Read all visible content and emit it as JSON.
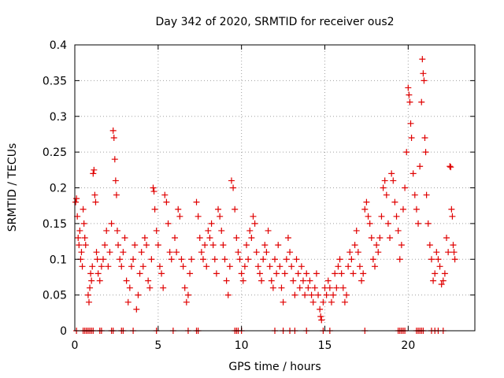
{
  "chart_data": {
    "type": "scatter",
    "title": "Day 342 of 2020, SRMTID for receiver ous2",
    "xlabel": "GPS time / hours",
    "ylabel": "SRMTID / TECUs",
    "xlim": [
      0,
      24
    ],
    "ylim": [
      0,
      0.4
    ],
    "grid": true,
    "marker": "+",
    "series_color": "#e00000",
    "xticks": [
      0,
      5,
      10,
      15,
      20
    ],
    "xtick_labels": [
      "0",
      "5",
      "10",
      "15",
      "20"
    ],
    "yticks": [
      0,
      0.05,
      0.1,
      0.15,
      0.2,
      0.25,
      0.3,
      0.35,
      0.4
    ],
    "ytick_labels": [
      "0",
      "0.05",
      "0.1",
      "0.15",
      "0.2",
      "0.25",
      "0.3",
      "0.35",
      "0.4"
    ],
    "series": [
      {
        "name": "SRMTID",
        "points": [
          [
            0.05,
            0.18
          ],
          [
            0.1,
            0.185
          ],
          [
            0.15,
            0.16
          ],
          [
            0.2,
            0.13
          ],
          [
            0.25,
            0.12
          ],
          [
            0.3,
            0.14
          ],
          [
            0.35,
            0.1
          ],
          [
            0.4,
            0.11
          ],
          [
            0.45,
            0.09
          ],
          [
            0.5,
            0.17
          ],
          [
            0.55,
            0.15
          ],
          [
            0.6,
            0.13
          ],
          [
            0.65,
            0.12
          ],
          [
            0.8,
            0.05
          ],
          [
            0.85,
            0.04
          ],
          [
            0.9,
            0.06
          ],
          [
            0.95,
            0.08
          ],
          [
            1.0,
            0.07
          ],
          [
            1.05,
            0.09
          ],
          [
            1.1,
            0.22
          ],
          [
            1.15,
            0.225
          ],
          [
            1.2,
            0.19
          ],
          [
            1.25,
            0.18
          ],
          [
            1.3,
            0.11
          ],
          [
            1.35,
            0.1
          ],
          [
            1.4,
            0.08
          ],
          [
            1.5,
            0.07
          ],
          [
            1.6,
            0.09
          ],
          [
            1.7,
            0.1
          ],
          [
            1.8,
            0.12
          ],
          [
            1.9,
            0.14
          ],
          [
            2.0,
            0.09
          ],
          [
            2.1,
            0.11
          ],
          [
            2.2,
            0.15
          ],
          [
            2.3,
            0.28
          ],
          [
            2.35,
            0.27
          ],
          [
            2.4,
            0.24
          ],
          [
            2.45,
            0.21
          ],
          [
            2.5,
            0.19
          ],
          [
            2.55,
            0.14
          ],
          [
            2.6,
            0.12
          ],
          [
            2.7,
            0.1
          ],
          [
            2.8,
            0.09
          ],
          [
            2.9,
            0.11
          ],
          [
            3.0,
            0.13
          ],
          [
            3.1,
            0.07
          ],
          [
            3.2,
            0.04
          ],
          [
            3.3,
            0.06
          ],
          [
            3.4,
            0.09
          ],
          [
            3.5,
            0.1
          ],
          [
            3.6,
            0.12
          ],
          [
            3.7,
            0.03
          ],
          [
            3.8,
            0.05
          ],
          [
            3.9,
            0.08
          ],
          [
            4.0,
            0.11
          ],
          [
            4.1,
            0.09
          ],
          [
            4.2,
            0.13
          ],
          [
            4.3,
            0.12
          ],
          [
            4.4,
            0.07
          ],
          [
            4.5,
            0.06
          ],
          [
            4.6,
            0.1
          ],
          [
            4.7,
            0.2
          ],
          [
            4.75,
            0.195
          ],
          [
            4.8,
            0.17
          ],
          [
            4.9,
            0.14
          ],
          [
            5.0,
            0.12
          ],
          [
            5.1,
            0.09
          ],
          [
            5.2,
            0.08
          ],
          [
            5.3,
            0.06
          ],
          [
            5.4,
            0.19
          ],
          [
            5.5,
            0.18
          ],
          [
            5.6,
            0.15
          ],
          [
            5.7,
            0.11
          ],
          [
            5.8,
            0.1
          ],
          [
            6.0,
            0.13
          ],
          [
            6.1,
            0.11
          ],
          [
            6.2,
            0.17
          ],
          [
            6.3,
            0.16
          ],
          [
            6.4,
            0.1
          ],
          [
            6.5,
            0.09
          ],
          [
            6.6,
            0.06
          ],
          [
            6.7,
            0.04
          ],
          [
            6.8,
            0.05
          ],
          [
            6.9,
            0.08
          ],
          [
            7.0,
            0.1
          ],
          [
            7.3,
            0.18
          ],
          [
            7.4,
            0.16
          ],
          [
            7.5,
            0.13
          ],
          [
            7.6,
            0.11
          ],
          [
            7.7,
            0.1
          ],
          [
            7.8,
            0.12
          ],
          [
            7.9,
            0.09
          ],
          [
            8.0,
            0.14
          ],
          [
            8.1,
            0.13
          ],
          [
            8.2,
            0.15
          ],
          [
            8.3,
            0.12
          ],
          [
            8.4,
            0.1
          ],
          [
            8.5,
            0.08
          ],
          [
            8.6,
            0.17
          ],
          [
            8.7,
            0.16
          ],
          [
            8.8,
            0.14
          ],
          [
            8.9,
            0.12
          ],
          [
            9.0,
            0.1
          ],
          [
            9.1,
            0.07
          ],
          [
            9.2,
            0.05
          ],
          [
            9.3,
            0.09
          ],
          [
            9.4,
            0.21
          ],
          [
            9.5,
            0.2
          ],
          [
            9.6,
            0.17
          ],
          [
            9.7,
            0.13
          ],
          [
            9.8,
            0.11
          ],
          [
            9.9,
            0.1
          ],
          [
            10.0,
            0.08
          ],
          [
            10.1,
            0.07
          ],
          [
            10.2,
            0.09
          ],
          [
            10.3,
            0.12
          ],
          [
            10.4,
            0.1
          ],
          [
            10.5,
            0.14
          ],
          [
            10.6,
            0.13
          ],
          [
            10.7,
            0.16
          ],
          [
            10.8,
            0.15
          ],
          [
            10.9,
            0.11
          ],
          [
            11.0,
            0.09
          ],
          [
            11.1,
            0.08
          ],
          [
            11.2,
            0.07
          ],
          [
            11.3,
            0.1
          ],
          [
            11.4,
            0.12
          ],
          [
            11.5,
            0.11
          ],
          [
            11.6,
            0.14
          ],
          [
            11.7,
            0.09
          ],
          [
            11.8,
            0.07
          ],
          [
            11.9,
            0.06
          ],
          [
            12.0,
            0.1
          ],
          [
            12.1,
            0.08
          ],
          [
            12.2,
            0.12
          ],
          [
            12.3,
            0.09
          ],
          [
            12.4,
            0.06
          ],
          [
            12.5,
            0.04
          ],
          [
            12.6,
            0.08
          ],
          [
            12.7,
            0.1
          ],
          [
            12.8,
            0.13
          ],
          [
            12.9,
            0.11
          ],
          [
            13.0,
            0.09
          ],
          [
            13.1,
            0.07
          ],
          [
            13.2,
            0.05
          ],
          [
            13.3,
            0.1
          ],
          [
            13.4,
            0.08
          ],
          [
            13.5,
            0.06
          ],
          [
            13.6,
            0.09
          ],
          [
            13.7,
            0.07
          ],
          [
            13.8,
            0.05
          ],
          [
            13.9,
            0.08
          ],
          [
            14.0,
            0.06
          ],
          [
            14.1,
            0.07
          ],
          [
            14.2,
            0.05
          ],
          [
            14.3,
            0.04
          ],
          [
            14.4,
            0.06
          ],
          [
            14.5,
            0.08
          ],
          [
            14.6,
            0.05
          ],
          [
            14.7,
            0.03
          ],
          [
            14.75,
            0.02
          ],
          [
            14.8,
            0.015
          ],
          [
            14.9,
            0.04
          ],
          [
            15.0,
            0.06
          ],
          [
            15.1,
            0.05
          ],
          [
            15.2,
            0.07
          ],
          [
            15.3,
            0.06
          ],
          [
            15.4,
            0.04
          ],
          [
            15.5,
            0.05
          ],
          [
            15.6,
            0.08
          ],
          [
            15.7,
            0.06
          ],
          [
            15.8,
            0.09
          ],
          [
            15.9,
            0.1
          ],
          [
            16.0,
            0.08
          ],
          [
            16.1,
            0.06
          ],
          [
            16.2,
            0.04
          ],
          [
            16.3,
            0.05
          ],
          [
            16.4,
            0.09
          ],
          [
            16.5,
            0.11
          ],
          [
            16.6,
            0.1
          ],
          [
            16.7,
            0.08
          ],
          [
            16.8,
            0.12
          ],
          [
            16.9,
            0.14
          ],
          [
            17.0,
            0.11
          ],
          [
            17.1,
            0.09
          ],
          [
            17.2,
            0.07
          ],
          [
            17.3,
            0.08
          ],
          [
            17.4,
            0.17
          ],
          [
            17.5,
            0.18
          ],
          [
            17.6,
            0.16
          ],
          [
            17.7,
            0.15
          ],
          [
            17.8,
            0.13
          ],
          [
            17.9,
            0.1
          ],
          [
            18.0,
            0.09
          ],
          [
            18.1,
            0.12
          ],
          [
            18.2,
            0.11
          ],
          [
            18.3,
            0.13
          ],
          [
            18.4,
            0.16
          ],
          [
            18.5,
            0.2
          ],
          [
            18.6,
            0.21
          ],
          [
            18.7,
            0.19
          ],
          [
            18.8,
            0.15
          ],
          [
            18.9,
            0.13
          ],
          [
            19.0,
            0.22
          ],
          [
            19.1,
            0.21
          ],
          [
            19.2,
            0.18
          ],
          [
            19.3,
            0.16
          ],
          [
            19.4,
            0.14
          ],
          [
            19.5,
            0.1
          ],
          [
            19.6,
            0.12
          ],
          [
            19.7,
            0.17
          ],
          [
            19.8,
            0.2
          ],
          [
            19.9,
            0.25
          ],
          [
            20.0,
            0.34
          ],
          [
            20.05,
            0.33
          ],
          [
            20.1,
            0.32
          ],
          [
            20.15,
            0.29
          ],
          [
            20.2,
            0.27
          ],
          [
            20.3,
            0.22
          ],
          [
            20.4,
            0.19
          ],
          [
            20.5,
            0.17
          ],
          [
            20.6,
            0.15
          ],
          [
            20.7,
            0.23
          ],
          [
            20.8,
            0.32
          ],
          [
            20.85,
            0.38
          ],
          [
            20.9,
            0.36
          ],
          [
            20.95,
            0.35
          ],
          [
            21.0,
            0.27
          ],
          [
            21.05,
            0.25
          ],
          [
            21.1,
            0.19
          ],
          [
            21.2,
            0.15
          ],
          [
            21.3,
            0.12
          ],
          [
            21.4,
            0.1
          ],
          [
            21.5,
            0.07
          ],
          [
            21.6,
            0.08
          ],
          [
            21.7,
            0.11
          ],
          [
            21.8,
            0.1
          ],
          [
            21.9,
            0.09
          ],
          [
            22.0,
            0.065
          ],
          [
            22.1,
            0.07
          ],
          [
            22.2,
            0.08
          ],
          [
            22.3,
            0.13
          ],
          [
            22.4,
            0.11
          ],
          [
            22.5,
            0.23
          ],
          [
            22.55,
            0.229
          ],
          [
            22.6,
            0.17
          ],
          [
            22.65,
            0.16
          ],
          [
            22.7,
            0.12
          ],
          [
            22.75,
            0.11
          ],
          [
            22.8,
            0.1
          ]
        ],
        "zero_values_x": [
          0.1,
          0.5,
          0.6,
          0.7,
          0.8,
          0.9,
          1.0,
          1.1,
          1.5,
          1.6,
          2.2,
          2.3,
          2.8,
          2.9,
          3.5,
          4.9,
          5.9,
          6.8,
          7.3,
          7.4,
          9.6,
          9.7,
          9.8,
          10.0,
          12.0,
          12.5,
          12.9,
          13.2,
          13.9,
          14.9,
          15.3,
          17.4,
          19.4,
          19.5,
          19.6,
          19.7,
          19.8,
          20.5,
          20.6,
          20.7,
          20.8,
          20.9,
          21.4,
          21.6,
          21.8,
          22.1
        ]
      }
    ]
  }
}
